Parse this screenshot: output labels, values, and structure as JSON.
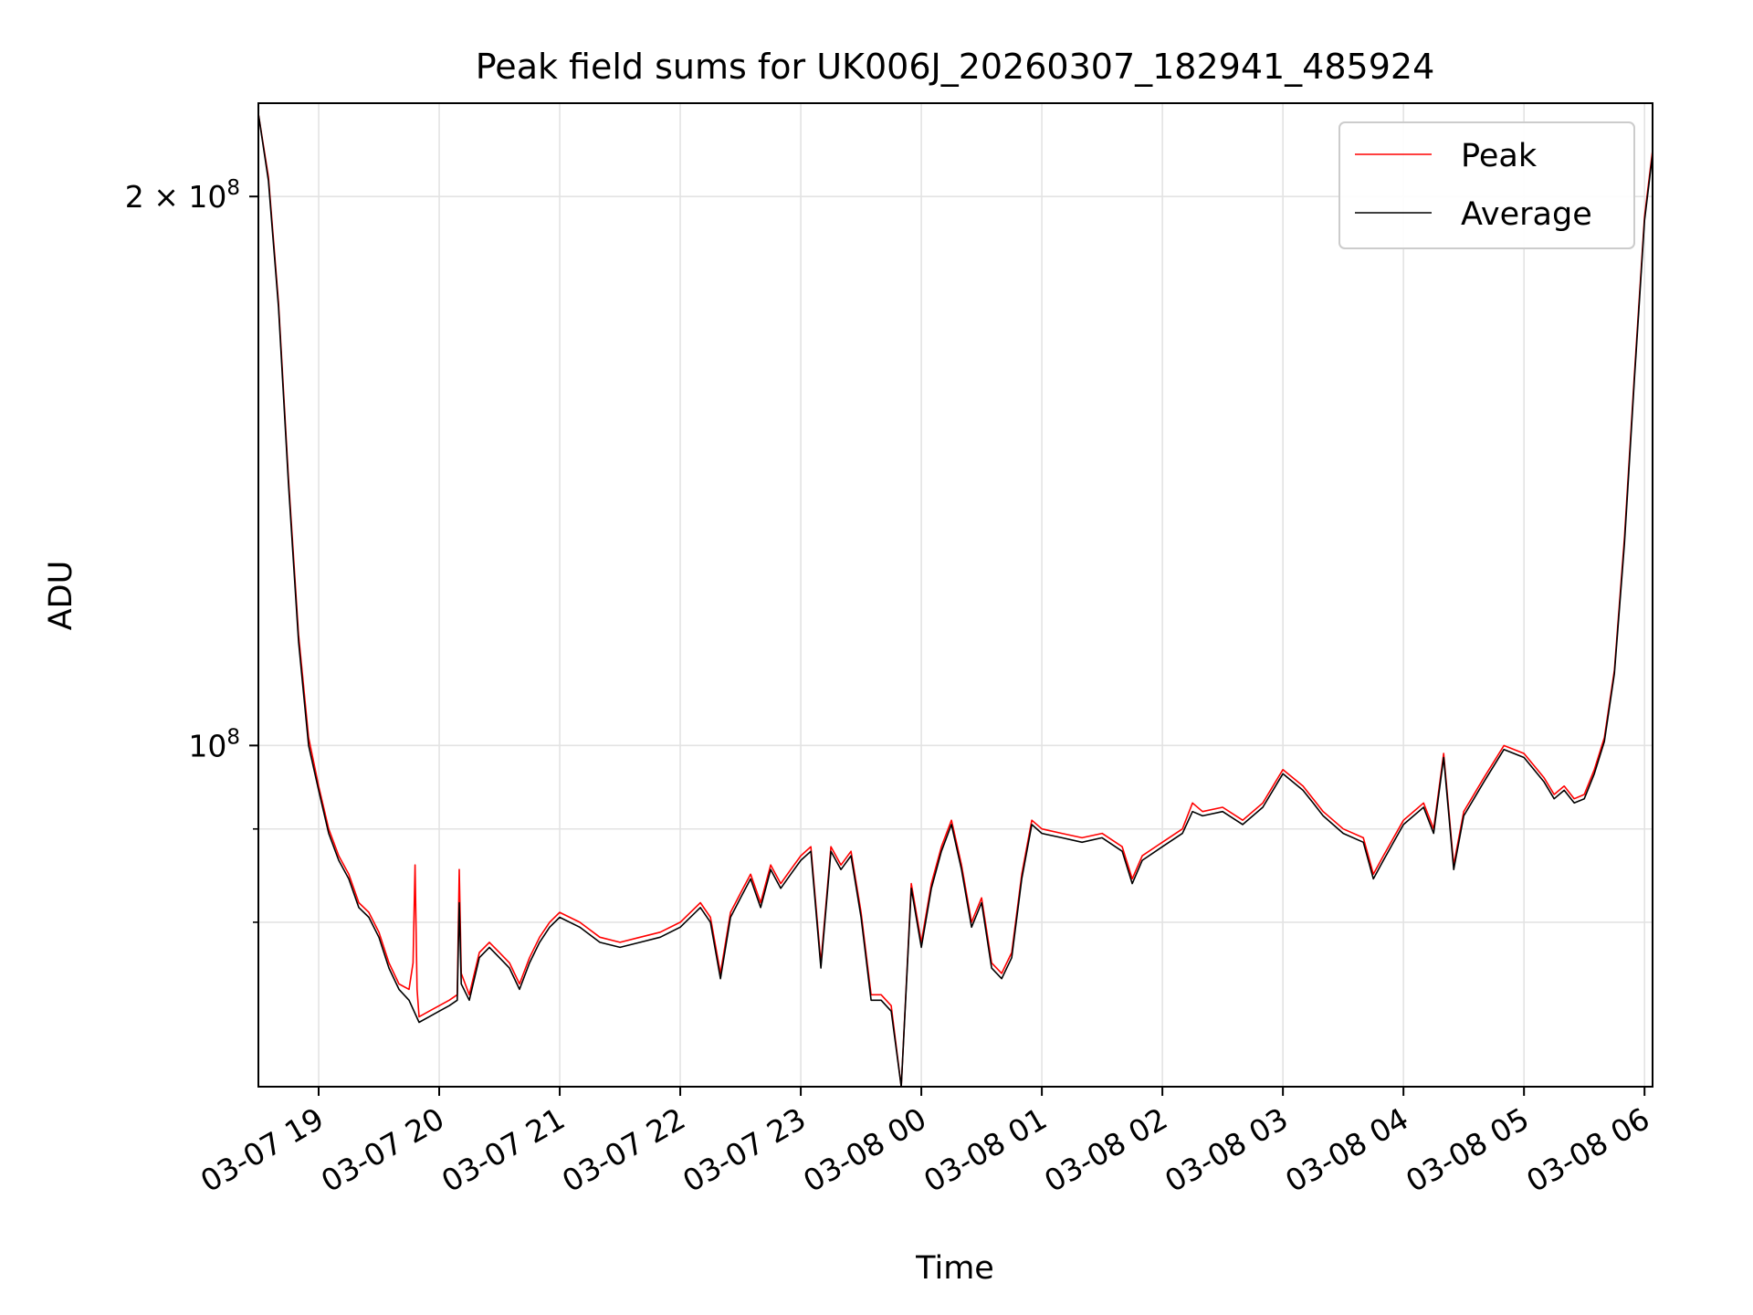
{
  "chart_data": {
    "type": "line",
    "title": "Peak field sums for UK006J_20260307_182941_485924",
    "xlabel": "Time",
    "ylabel": "ADU",
    "y_scale": "log",
    "ylim": [
      65000000,
      225000000
    ],
    "xlim": [
      "2026-03-07 18:30",
      "2026-03-08 06:04"
    ],
    "x_ticks": [
      "2026-03-07 19:00",
      "2026-03-07 20:00",
      "2026-03-07 21:00",
      "2026-03-07 22:00",
      "2026-03-07 23:00",
      "2026-03-08 00:00",
      "2026-03-08 01:00",
      "2026-03-08 02:00",
      "2026-03-08 03:00",
      "2026-03-08 04:00",
      "2026-03-08 05:00",
      "2026-03-08 06:00"
    ],
    "x_tick_labels": [
      "03-07 19",
      "03-07 20",
      "03-07 21",
      "03-07 22",
      "03-07 23",
      "03-08 00",
      "03-08 01",
      "03-08 02",
      "03-08 03",
      "03-08 04",
      "03-08 05",
      "03-08 06"
    ],
    "y_tick_labels": [
      {
        "value": 100000000,
        "mantissa": "",
        "base": "10",
        "exp": "8"
      },
      {
        "value": 200000000,
        "mantissa": "2 × ",
        "base": "10",
        "exp": "8"
      }
    ],
    "y_minor_gridlines": [
      80000000,
      90000000
    ],
    "grid": true,
    "legend_position": "upper right",
    "series": [
      {
        "name": "Peak",
        "color": "#ff0000",
        "x": [
          "2026-03-07 18:30",
          "2026-03-07 18:35",
          "2026-03-07 18:40",
          "2026-03-07 18:45",
          "2026-03-07 18:50",
          "2026-03-07 18:55",
          "2026-03-07 19:00",
          "2026-03-07 19:05",
          "2026-03-07 19:10",
          "2026-03-07 19:15",
          "2026-03-07 19:20",
          "2026-03-07 19:25",
          "2026-03-07 19:30",
          "2026-03-07 19:35",
          "2026-03-07 19:40",
          "2026-03-07 19:45",
          "2026-03-07 19:47",
          "2026-03-07 19:48",
          "2026-03-07 19:49",
          "2026-03-07 19:50",
          "2026-03-07 19:55",
          "2026-03-07 20:00",
          "2026-03-07 20:05",
          "2026-03-07 20:09",
          "2026-03-07 20:10",
          "2026-03-07 20:11",
          "2026-03-07 20:15",
          "2026-03-07 20:20",
          "2026-03-07 20:25",
          "2026-03-07 20:30",
          "2026-03-07 20:35",
          "2026-03-07 20:40",
          "2026-03-07 20:45",
          "2026-03-07 20:50",
          "2026-03-07 20:55",
          "2026-03-07 21:00",
          "2026-03-07 21:10",
          "2026-03-07 21:20",
          "2026-03-07 21:30",
          "2026-03-07 21:40",
          "2026-03-07 21:50",
          "2026-03-07 22:00",
          "2026-03-07 22:10",
          "2026-03-07 22:15",
          "2026-03-07 22:20",
          "2026-03-07 22:25",
          "2026-03-07 22:30",
          "2026-03-07 22:35",
          "2026-03-07 22:40",
          "2026-03-07 22:45",
          "2026-03-07 22:50",
          "2026-03-07 22:55",
          "2026-03-07 23:00",
          "2026-03-07 23:05",
          "2026-03-07 23:10",
          "2026-03-07 23:15",
          "2026-03-07 23:20",
          "2026-03-07 23:25",
          "2026-03-07 23:30",
          "2026-03-07 23:35",
          "2026-03-07 23:40",
          "2026-03-07 23:45",
          "2026-03-07 23:50",
          "2026-03-07 23:55",
          "2026-03-08 00:00",
          "2026-03-08 00:05",
          "2026-03-08 00:10",
          "2026-03-08 00:15",
          "2026-03-08 00:20",
          "2026-03-08 00:25",
          "2026-03-08 00:30",
          "2026-03-08 00:35",
          "2026-03-08 00:40",
          "2026-03-08 00:45",
          "2026-03-08 00:50",
          "2026-03-08 00:55",
          "2026-03-08 01:00",
          "2026-03-08 01:10",
          "2026-03-08 01:20",
          "2026-03-08 01:30",
          "2026-03-08 01:40",
          "2026-03-08 01:45",
          "2026-03-08 01:50",
          "2026-03-08 02:00",
          "2026-03-08 02:10",
          "2026-03-08 02:15",
          "2026-03-08 02:20",
          "2026-03-08 02:30",
          "2026-03-08 02:40",
          "2026-03-08 02:50",
          "2026-03-08 03:00",
          "2026-03-08 03:10",
          "2026-03-08 03:15",
          "2026-03-08 03:20",
          "2026-03-08 03:30",
          "2026-03-08 03:40",
          "2026-03-08 03:45",
          "2026-03-08 03:50",
          "2026-03-08 04:00",
          "2026-03-08 04:10",
          "2026-03-08 04:15",
          "2026-03-08 04:20",
          "2026-03-08 04:25",
          "2026-03-08 04:30",
          "2026-03-08 04:40",
          "2026-03-08 04:50",
          "2026-03-08 05:00",
          "2026-03-08 05:10",
          "2026-03-08 05:15",
          "2026-03-08 05:20",
          "2026-03-08 05:25",
          "2026-03-08 05:30",
          "2026-03-08 05:35",
          "2026-03-08 05:40",
          "2026-03-08 05:45",
          "2026-03-08 05:50",
          "2026-03-08 05:55",
          "2026-03-08 06:00",
          "2026-03-08 06:04"
        ],
        "y": [
          222000000,
          205000000,
          175000000,
          140000000,
          115000000,
          101000000,
          95000000,
          90000000,
          87000000,
          85000000,
          82000000,
          81000000,
          79000000,
          76000000,
          74000000,
          73500000,
          76000000,
          86000000,
          73500000,
          71000000,
          71500000,
          72000000,
          72500000,
          73000000,
          85500000,
          75000000,
          73000000,
          77000000,
          78000000,
          77000000,
          76000000,
          74000000,
          76500000,
          78500000,
          80000000,
          81000000,
          80000000,
          78500000,
          78000000,
          78500000,
          79000000,
          80000000,
          82000000,
          80500000,
          75000000,
          81000000,
          83000000,
          85000000,
          82000000,
          86000000,
          84000000,
          85500000,
          87000000,
          88000000,
          76000000,
          88000000,
          86000000,
          87500000,
          81000000,
          73000000,
          73000000,
          72000000,
          65000000,
          84000000,
          78000000,
          84000000,
          88000000,
          91000000,
          86000000,
          80000000,
          82500000,
          76000000,
          75000000,
          77000000,
          85000000,
          91000000,
          90000000,
          89500000,
          89000000,
          89500000,
          88000000,
          84500000,
          87000000,
          88500000,
          90000000,
          93000000,
          92000000,
          92500000,
          91000000,
          93000000,
          97000000,
          95000000,
          93500000,
          92000000,
          90000000,
          89000000,
          85000000,
          87000000,
          91000000,
          93000000,
          90000000,
          99000000,
          86000000,
          92000000,
          96000000,
          100000000,
          99000000,
          96000000,
          94000000,
          95000000,
          93500000,
          94000000,
          97000000,
          101000000,
          110000000,
          130000000,
          160000000,
          195000000,
          212000000
        ]
      },
      {
        "name": "Average",
        "color": "#000000",
        "x": [
          "2026-03-07 18:30",
          "2026-03-07 18:35",
          "2026-03-07 18:40",
          "2026-03-07 18:45",
          "2026-03-07 18:50",
          "2026-03-07 18:55",
          "2026-03-07 19:00",
          "2026-03-07 19:05",
          "2026-03-07 19:10",
          "2026-03-07 19:15",
          "2026-03-07 19:20",
          "2026-03-07 19:25",
          "2026-03-07 19:30",
          "2026-03-07 19:35",
          "2026-03-07 19:40",
          "2026-03-07 19:45",
          "2026-03-07 19:50",
          "2026-03-07 19:55",
          "2026-03-07 20:00",
          "2026-03-07 20:05",
          "2026-03-07 20:09",
          "2026-03-07 20:10",
          "2026-03-07 20:11",
          "2026-03-07 20:15",
          "2026-03-07 20:20",
          "2026-03-07 20:25",
          "2026-03-07 20:30",
          "2026-03-07 20:35",
          "2026-03-07 20:40",
          "2026-03-07 20:45",
          "2026-03-07 20:50",
          "2026-03-07 20:55",
          "2026-03-07 21:00",
          "2026-03-07 21:10",
          "2026-03-07 21:20",
          "2026-03-07 21:30",
          "2026-03-07 21:40",
          "2026-03-07 21:50",
          "2026-03-07 22:00",
          "2026-03-07 22:10",
          "2026-03-07 22:15",
          "2026-03-07 22:20",
          "2026-03-07 22:25",
          "2026-03-07 22:30",
          "2026-03-07 22:35",
          "2026-03-07 22:40",
          "2026-03-07 22:45",
          "2026-03-07 22:50",
          "2026-03-07 22:55",
          "2026-03-07 23:00",
          "2026-03-07 23:05",
          "2026-03-07 23:10",
          "2026-03-07 23:15",
          "2026-03-07 23:20",
          "2026-03-07 23:25",
          "2026-03-07 23:30",
          "2026-03-07 23:35",
          "2026-03-07 23:40",
          "2026-03-07 23:45",
          "2026-03-07 23:50",
          "2026-03-07 23:55",
          "2026-03-08 00:00",
          "2026-03-08 00:05",
          "2026-03-08 00:10",
          "2026-03-08 00:15",
          "2026-03-08 00:20",
          "2026-03-08 00:25",
          "2026-03-08 00:30",
          "2026-03-08 00:35",
          "2026-03-08 00:40",
          "2026-03-08 00:45",
          "2026-03-08 00:50",
          "2026-03-08 00:55",
          "2026-03-08 01:00",
          "2026-03-08 01:10",
          "2026-03-08 01:20",
          "2026-03-08 01:30",
          "2026-03-08 01:40",
          "2026-03-08 01:45",
          "2026-03-08 01:50",
          "2026-03-08 02:00",
          "2026-03-08 02:10",
          "2026-03-08 02:15",
          "2026-03-08 02:20",
          "2026-03-08 02:30",
          "2026-03-08 02:40",
          "2026-03-08 02:50",
          "2026-03-08 03:00",
          "2026-03-08 03:10",
          "2026-03-08 03:15",
          "2026-03-08 03:20",
          "2026-03-08 03:30",
          "2026-03-08 03:40",
          "2026-03-08 03:45",
          "2026-03-08 03:50",
          "2026-03-08 04:00",
          "2026-03-08 04:10",
          "2026-03-08 04:15",
          "2026-03-08 04:20",
          "2026-03-08 04:25",
          "2026-03-08 04:30",
          "2026-03-08 04:40",
          "2026-03-08 04:50",
          "2026-03-08 05:00",
          "2026-03-08 05:10",
          "2026-03-08 05:15",
          "2026-03-08 05:20",
          "2026-03-08 05:25",
          "2026-03-08 05:30",
          "2026-03-08 05:35",
          "2026-03-08 05:40",
          "2026-03-08 05:45",
          "2026-03-08 05:50",
          "2026-03-08 05:55",
          "2026-03-08 06:00",
          "2026-03-08 06:04"
        ],
        "y": [
          222000000,
          204000000,
          174000000,
          139000000,
          114000000,
          100000000,
          94500000,
          89500000,
          86500000,
          84500000,
          81500000,
          80500000,
          78500000,
          75500000,
          73500000,
          72500000,
          70500000,
          71000000,
          71500000,
          72000000,
          72500000,
          82000000,
          74000000,
          72500000,
          76500000,
          77500000,
          76500000,
          75500000,
          73500000,
          76000000,
          78000000,
          79500000,
          80500000,
          79500000,
          78000000,
          77500000,
          78000000,
          78500000,
          79500000,
          81500000,
          80000000,
          74500000,
          80500000,
          82500000,
          84500000,
          81500000,
          85500000,
          83500000,
          85000000,
          86500000,
          87500000,
          75500000,
          87500000,
          85500000,
          87000000,
          80500000,
          72500000,
          72500000,
          71500000,
          65000000,
          83500000,
          77500000,
          83500000,
          87500000,
          90500000,
          85500000,
          79500000,
          82000000,
          75500000,
          74500000,
          76500000,
          84500000,
          90500000,
          89500000,
          89000000,
          88500000,
          89000000,
          87500000,
          84000000,
          86500000,
          88000000,
          89500000,
          92000000,
          91500000,
          92000000,
          90500000,
          92500000,
          96500000,
          94500000,
          93000000,
          91500000,
          89500000,
          88500000,
          84500000,
          86500000,
          90500000,
          92500000,
          89500000,
          98500000,
          85500000,
          91500000,
          95500000,
          99500000,
          98500000,
          95500000,
          93500000,
          94500000,
          93000000,
          93500000,
          96500000,
          100500000,
          109500000,
          129000000,
          159000000,
          194000000,
          211000000
        ]
      }
    ]
  }
}
